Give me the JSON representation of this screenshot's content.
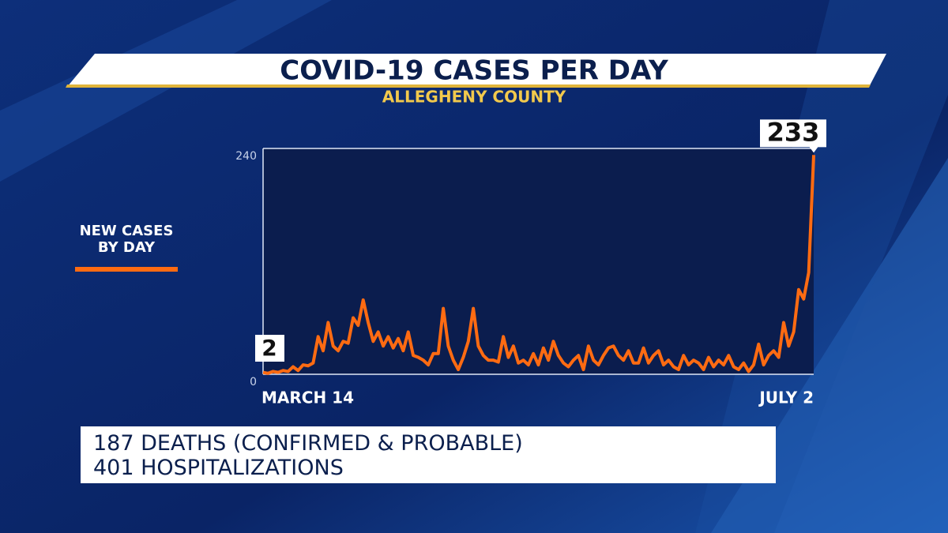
{
  "chart_data": {
    "type": "line",
    "title": "COVID-19 CASES PER DAY",
    "subtitle": "ALLEGHENY COUNTY",
    "categories": [
      "MARCH 14",
      null,
      null,
      null,
      null,
      null,
      null,
      null,
      null,
      null,
      null,
      null,
      null,
      null,
      null,
      null,
      null,
      null,
      null,
      null,
      null,
      null,
      null,
      null,
      null,
      null,
      null,
      null,
      null,
      null,
      null,
      null,
      null,
      null,
      null,
      null,
      null,
      null,
      null,
      null,
      null,
      null,
      null,
      null,
      null,
      null,
      null,
      null,
      null,
      null,
      null,
      null,
      null,
      null,
      null,
      null,
      null,
      null,
      null,
      null,
      null,
      null,
      null,
      null,
      null,
      null,
      null,
      null,
      null,
      null,
      null,
      null,
      null,
      null,
      null,
      null,
      null,
      null,
      null,
      null,
      null,
      null,
      null,
      null,
      null,
      null,
      null,
      null,
      null,
      null,
      null,
      null,
      null,
      null,
      null,
      null,
      null,
      null,
      null,
      null,
      null,
      null,
      null,
      null,
      null,
      null,
      null,
      null,
      null,
      null,
      "JULY 2"
    ],
    "series": [
      {
        "name": "NEW CASES BY DAY",
        "color": "#ff6b12",
        "values": [
          2,
          1,
          3,
          2,
          4,
          3,
          8,
          4,
          10,
          9,
          12,
          40,
          25,
          55,
          30,
          25,
          35,
          33,
          60,
          52,
          79,
          55,
          35,
          45,
          30,
          40,
          28,
          38,
          25,
          45,
          20,
          18,
          15,
          10,
          22,
          22,
          70,
          30,
          15,
          5,
          18,
          35,
          70,
          30,
          20,
          15,
          15,
          13,
          40,
          18,
          30,
          12,
          15,
          10,
          22,
          10,
          28,
          15,
          35,
          20,
          12,
          8,
          15,
          20,
          5,
          30,
          15,
          10,
          20,
          28,
          30,
          20,
          15,
          25,
          12,
          12,
          28,
          12,
          20,
          25,
          10,
          15,
          8,
          5,
          20,
          10,
          15,
          12,
          5,
          18,
          8,
          15,
          10,
          20,
          8,
          5,
          12,
          3,
          10,
          32,
          10,
          20,
          25,
          18,
          55,
          30,
          45,
          90,
          80,
          108,
          233
        ]
      }
    ],
    "ylim": [
      0,
      240
    ],
    "yticks": [
      0,
      240
    ],
    "grid": true,
    "annotations": [
      "187 DEATHS (CONFIRMED & PROBABLE)",
      "401 HOSPITALIZATIONS"
    ]
  }
}
